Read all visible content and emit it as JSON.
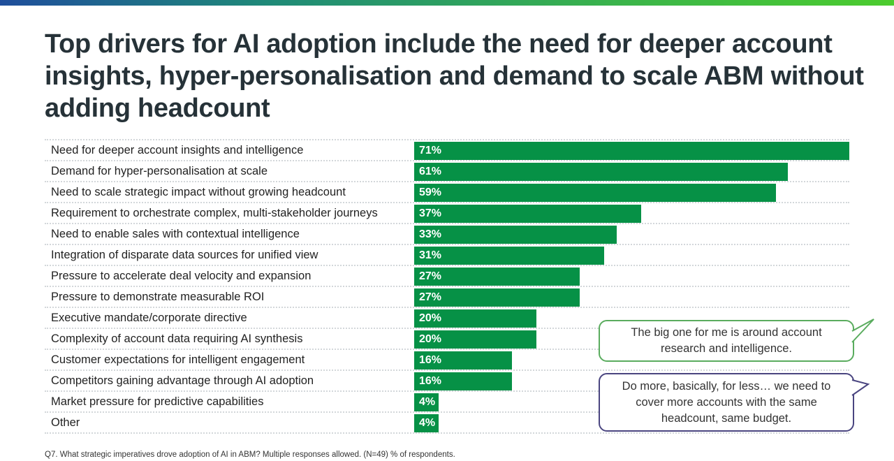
{
  "title": "Top drivers for AI adoption include the need for deeper account insights, hyper-personalisation and demand to scale ABM without adding headcount",
  "chart_data": {
    "type": "bar",
    "orientation": "horizontal",
    "categories": [
      "Need for deeper account insights and intelligence",
      "Demand for hyper-personalisation at scale",
      "Need to scale strategic impact without growing headcount",
      "Requirement to orchestrate complex, multi-stakeholder journeys",
      "Need to enable sales with contextual intelligence",
      "Integration of disparate data sources for unified view",
      "Pressure to accelerate deal velocity and expansion",
      "Pressure to demonstrate measurable ROI",
      "Executive mandate/corporate directive",
      "Complexity of account data requiring AI synthesis",
      "Customer expectations for intelligent engagement",
      "Competitors gaining advantage through AI adoption",
      "Market pressure for predictive capabilities",
      "Other"
    ],
    "values": [
      71,
      61,
      59,
      37,
      33,
      31,
      27,
      27,
      20,
      20,
      16,
      16,
      4,
      4
    ],
    "labels": [
      "71%",
      "61%",
      "59%",
      "37%",
      "33%",
      "31%",
      "27%",
      "27%",
      "20%",
      "20%",
      "16%",
      "16%",
      "4%",
      "4%"
    ],
    "bar_color": "#069146",
    "grid": false
  },
  "quotes": [
    {
      "text": "The big one for me is around account research and intelligence.",
      "color": "#5aac5e"
    },
    {
      "text": "Do more, basically, for less… we need to cover more accounts with the same headcount, same budget.",
      "color": "#4a4580"
    }
  ],
  "footnote": "Q7. What strategic imperatives drove adoption of AI in ABM? Multiple responses allowed. (N=49) % of respondents."
}
